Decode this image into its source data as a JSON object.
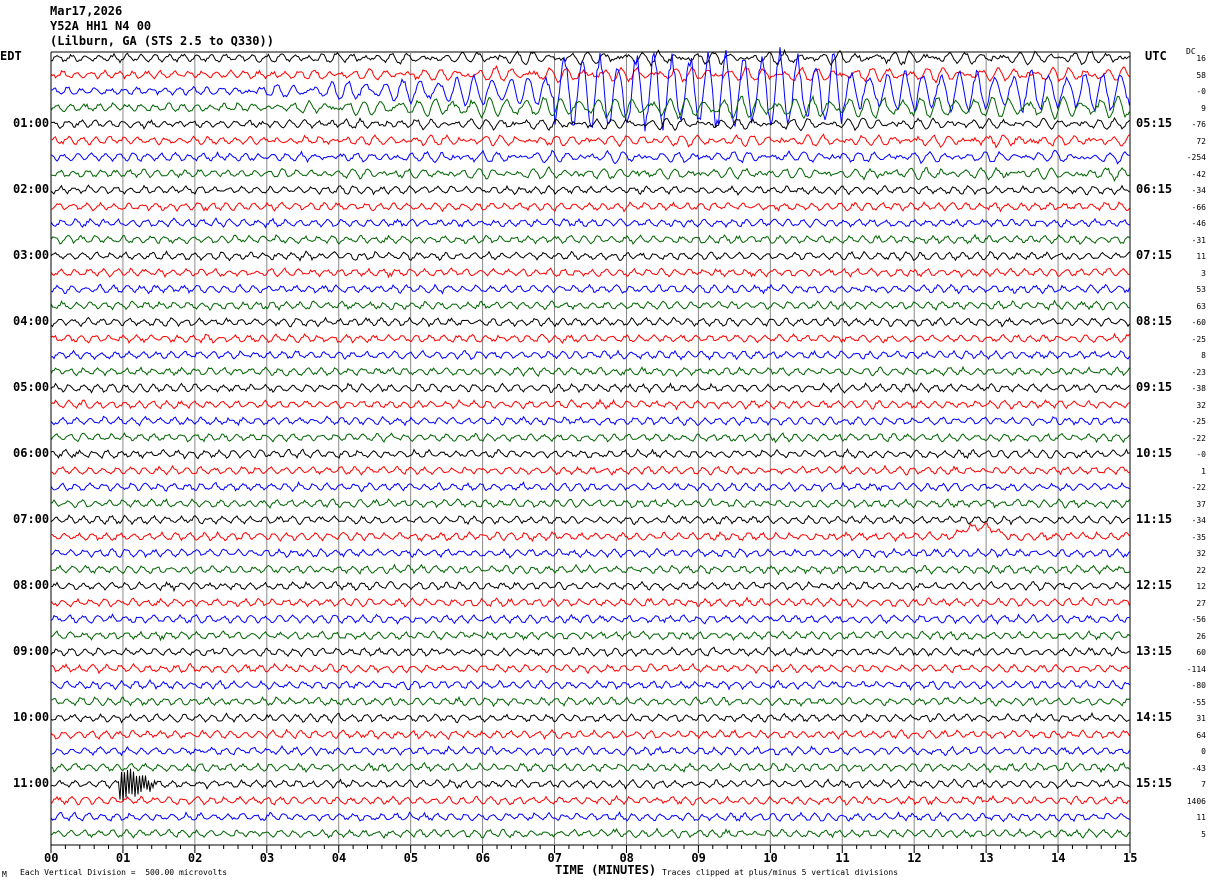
{
  "header": {
    "date": "Mar17,2026",
    "station": "Y52A HH1 N4 00",
    "location": "(Lilburn, GA (STS 2.5 to Q330))"
  },
  "left_label": "EDT",
  "right_label": "UTC",
  "dc_label": "DC",
  "chart_data": {
    "type": "helicorder",
    "x_ticks": [
      "00",
      "01",
      "02",
      "03",
      "04",
      "05",
      "06",
      "07",
      "08",
      "09",
      "10",
      "11",
      "12",
      "13",
      "14",
      "15"
    ],
    "xlabel": "TIME (MINUTES)",
    "xlim": [
      0,
      15
    ],
    "left_hours": [
      "01:00",
      "02:00",
      "03:00",
      "04:00",
      "05:00",
      "06:00",
      "07:00",
      "08:00",
      "09:00",
      "10:00",
      "11:00"
    ],
    "right_hours": [
      "05:15",
      "06:15",
      "07:15",
      "08:15",
      "09:15",
      "10:15",
      "11:15",
      "12:15",
      "13:15",
      "14:15",
      "15:15"
    ],
    "dc_offsets": [
      "16",
      "58",
      "-0",
      "9",
      "-76",
      "72",
      "-254",
      "-42",
      "-34",
      "-66",
      "-46",
      "-31",
      "11",
      "3",
      "53",
      "63",
      "-60",
      "-25",
      "8",
      "-23",
      "-38",
      "32",
      "-25",
      "-22",
      "-0",
      "1",
      "-22",
      "37",
      "-34",
      "-35",
      "32",
      "22",
      "12",
      "27",
      "-56",
      "26",
      "60",
      "-114",
      "-80",
      "-55",
      "31",
      "64",
      "0",
      "-43",
      "7",
      "1406",
      "11",
      "5"
    ],
    "trace_colors": [
      "#000000",
      "#ff0000",
      "#0000ff",
      "#006400"
    ],
    "events": [
      {
        "rows": [
          0,
          1,
          2,
          3,
          4,
          5,
          6,
          7
        ],
        "start_min": 2,
        "end_min": 15,
        "note": "large teleseismic signal"
      },
      {
        "rows": [
          44
        ],
        "start_min": 1.0,
        "end_min": 1.5,
        "note": "local spike"
      }
    ]
  },
  "footer": {
    "scale": "Each Vertical Division =  500.00 microvolts",
    "clip": "Traces clipped at plus/minus 5 vertical divisions",
    "corner": "M"
  }
}
